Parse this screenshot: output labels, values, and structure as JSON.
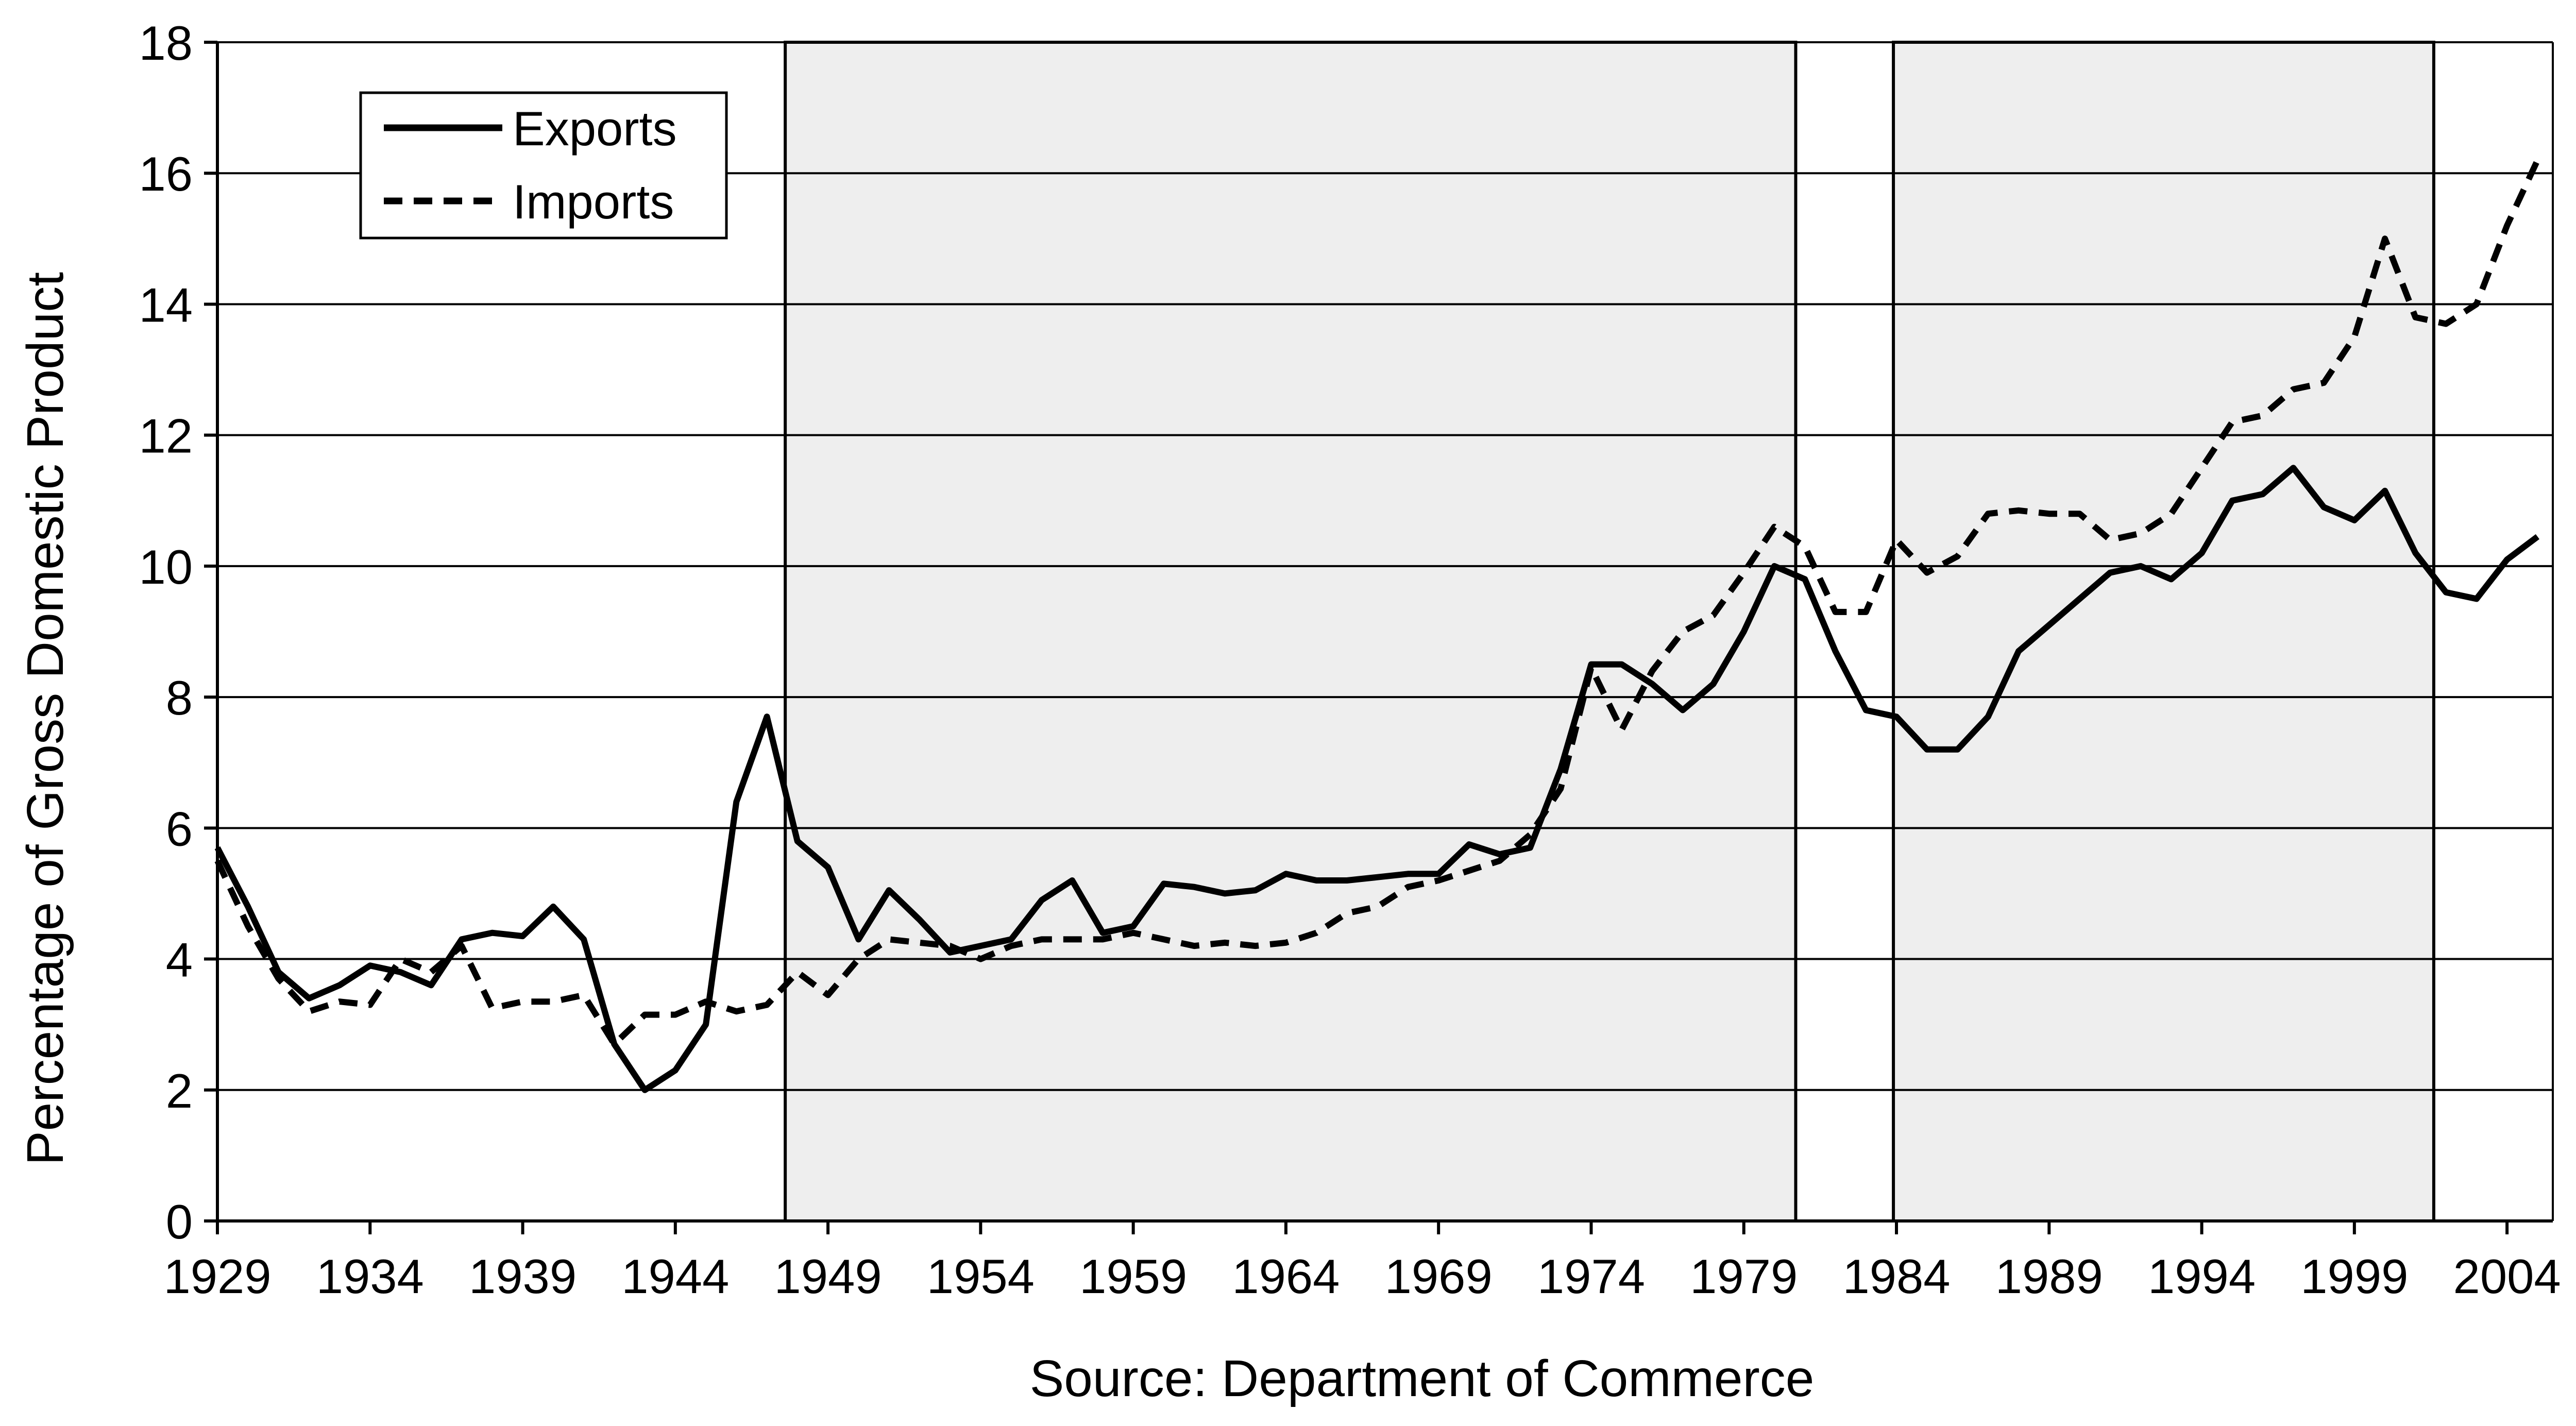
{
  "chart_data": {
    "type": "line",
    "title": "",
    "xlabel": "Source: Department of Commerce",
    "ylabel": "Percentage of Gross Domestic Product",
    "xlim": [
      1929,
      2005.5
    ],
    "ylim": [
      0,
      18
    ],
    "y_ticks": [
      0,
      2,
      4,
      6,
      8,
      10,
      12,
      14,
      16,
      18
    ],
    "x_ticks": [
      1929,
      1934,
      1939,
      1944,
      1949,
      1954,
      1959,
      1964,
      1969,
      1974,
      1979,
      1984,
      1989,
      1994,
      1999,
      2004
    ],
    "y_tick_labels": [
      "0",
      "2",
      "4",
      "6",
      "8",
      "10",
      "12",
      "14",
      "16",
      "18"
    ],
    "x_tick_labels": [
      "1929",
      "1934",
      "1939",
      "1944",
      "1949",
      "1954",
      "1959",
      "1964",
      "1969",
      "1974",
      "1979",
      "1984",
      "1989",
      "1994",
      "1999",
      "2004"
    ],
    "grid": "horizontal",
    "legend_position": "top-left",
    "shaded_periods": [
      {
        "start": 1947.6,
        "end": 1980.7
      },
      {
        "start": 1983.9,
        "end": 2001.6
      }
    ],
    "shade_color": "#eeeeee",
    "x": [
      1929,
      1930,
      1931,
      1932,
      1933,
      1934,
      1935,
      1936,
      1937,
      1938,
      1939,
      1940,
      1941,
      1942,
      1943,
      1944,
      1945,
      1946,
      1947,
      1948,
      1949,
      1950,
      1951,
      1952,
      1953,
      1954,
      1955,
      1956,
      1957,
      1958,
      1959,
      1960,
      1961,
      1962,
      1963,
      1964,
      1965,
      1966,
      1967,
      1968,
      1969,
      1970,
      1971,
      1972,
      1973,
      1974,
      1975,
      1976,
      1977,
      1978,
      1979,
      1980,
      1981,
      1982,
      1983,
      1984,
      1985,
      1986,
      1987,
      1988,
      1989,
      1990,
      1991,
      1992,
      1993,
      1994,
      1995,
      1996,
      1997,
      1998,
      1999,
      2000,
      2001,
      2002,
      2003,
      2004,
      2005
    ],
    "series": [
      {
        "name": "Exports",
        "style": "solid",
        "color": "#000000",
        "values": [
          5.7,
          4.8,
          3.8,
          3.4,
          3.6,
          3.9,
          3.8,
          3.6,
          4.3,
          4.4,
          4.35,
          4.8,
          4.3,
          2.7,
          2.0,
          2.3,
          3.0,
          6.4,
          7.7,
          5.8,
          5.4,
          4.3,
          5.05,
          4.6,
          4.1,
          4.2,
          4.3,
          4.9,
          5.2,
          4.4,
          4.5,
          5.15,
          5.1,
          5.0,
          5.05,
          5.3,
          5.2,
          5.2,
          5.25,
          5.3,
          5.3,
          5.75,
          5.6,
          5.7,
          6.9,
          8.5,
          8.5,
          8.2,
          7.8,
          8.2,
          9.0,
          10.0,
          9.8,
          8.7,
          7.8,
          7.7,
          7.2,
          7.2,
          7.7,
          8.7,
          9.1,
          9.5,
          9.9,
          10.0,
          9.8,
          10.2,
          11.0,
          11.1,
          11.5,
          10.9,
          10.7,
          11.15,
          10.2,
          9.6,
          9.5,
          10.1,
          10.45
        ]
      },
      {
        "name": "Imports",
        "style": "dashed",
        "color": "#000000",
        "values": [
          5.5,
          4.5,
          3.7,
          3.2,
          3.35,
          3.3,
          4.0,
          3.8,
          4.2,
          3.25,
          3.35,
          3.35,
          3.45,
          2.7,
          3.15,
          3.15,
          3.35,
          3.2,
          3.3,
          3.8,
          3.45,
          4.0,
          4.3,
          4.25,
          4.2,
          4.0,
          4.2,
          4.3,
          4.3,
          4.3,
          4.4,
          4.3,
          4.2,
          4.25,
          4.2,
          4.25,
          4.4,
          4.7,
          4.8,
          5.1,
          5.2,
          5.35,
          5.5,
          5.9,
          6.6,
          8.45,
          7.5,
          8.4,
          9.0,
          9.25,
          9.9,
          10.6,
          10.3,
          9.3,
          9.3,
          10.4,
          9.9,
          10.15,
          10.8,
          10.85,
          10.8,
          10.8,
          10.4,
          10.5,
          10.8,
          11.5,
          12.2,
          12.3,
          12.7,
          12.8,
          13.5,
          15.0,
          13.8,
          13.7,
          14.0,
          15.2,
          16.2
        ]
      }
    ]
  }
}
